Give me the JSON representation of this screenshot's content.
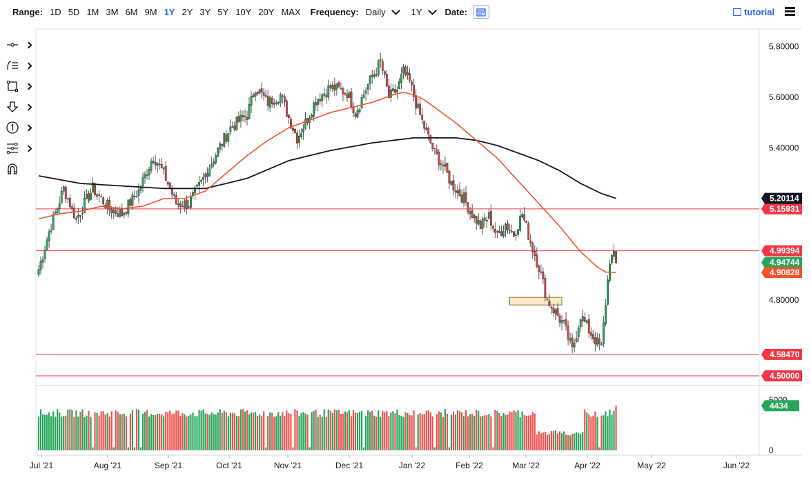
{
  "toolbar": {
    "range_label": "Range:",
    "ranges": [
      "1D",
      "5D",
      "1M",
      "3M",
      "6M",
      "9M",
      "1Y",
      "2Y",
      "3Y",
      "5Y",
      "10Y",
      "20Y",
      "MAX"
    ],
    "active_range": "1Y",
    "frequency_label": "Frequency:",
    "frequency_value": "Daily",
    "period_value": "1Y",
    "date_label": "Date:",
    "tutorial_label": "tutorial"
  },
  "tools": [
    "crosshair-icon",
    "trend-lines-icon",
    "shapes-icon",
    "arrow-down-icon",
    "annotation-icon",
    "measure-icon",
    "magnet-icon"
  ],
  "chart_data": {
    "type": "candlestick",
    "x_ticks": [
      "Jul '21",
      "Aug '21",
      "Sep '21",
      "Oct '21",
      "Nov '21",
      "Dec '21",
      "Jan '22",
      "Feb '22",
      "Mar '22",
      "Apr '22",
      "May '22",
      "Jun '22"
    ],
    "y_ticks": [
      "5.80000",
      "5.60000",
      "5.40000",
      "4.80000"
    ],
    "ylim": [
      4.47,
      5.87
    ],
    "horizontal_lines": [
      {
        "value": 5.15931,
        "label": "5.15931",
        "color": "#f23645"
      },
      {
        "value": 4.99394,
        "label": "4.99394",
        "color": "#f23645"
      },
      {
        "value": 4.5847,
        "label": "4.58470",
        "color": "#f23645"
      },
      {
        "value": 4.5,
        "label": "4.50000",
        "color": "#f23645"
      }
    ],
    "price_labels": [
      {
        "value": 5.20114,
        "label": "5.20114",
        "color": "#131722"
      },
      {
        "value": 4.94744,
        "label": "4.94744",
        "color": "#26a65b"
      },
      {
        "value": 4.90828,
        "label": "4.90828",
        "color": "#f0532d"
      }
    ],
    "close_anchors": [
      [
        0,
        4.92
      ],
      [
        5,
        5.07
      ],
      [
        12,
        5.24
      ],
      [
        18,
        5.12
      ],
      [
        26,
        5.24
      ],
      [
        34,
        5.16
      ],
      [
        40,
        5.14
      ],
      [
        48,
        5.23
      ],
      [
        55,
        5.37
      ],
      [
        60,
        5.3
      ],
      [
        66,
        5.18
      ],
      [
        72,
        5.18
      ],
      [
        78,
        5.26
      ],
      [
        84,
        5.36
      ],
      [
        92,
        5.48
      ],
      [
        100,
        5.53
      ],
      [
        104,
        5.64
      ],
      [
        110,
        5.58
      ],
      [
        116,
        5.61
      ],
      [
        120,
        5.52
      ],
      [
        124,
        5.44
      ],
      [
        128,
        5.5
      ],
      [
        133,
        5.59
      ],
      [
        140,
        5.64
      ],
      [
        148,
        5.62
      ],
      [
        152,
        5.54
      ],
      [
        158,
        5.65
      ],
      [
        164,
        5.74
      ],
      [
        168,
        5.6
      ],
      [
        172,
        5.63
      ],
      [
        175,
        5.7
      ],
      [
        178,
        5.66
      ],
      [
        182,
        5.55
      ],
      [
        186,
        5.46
      ],
      [
        190,
        5.38
      ],
      [
        194,
        5.33
      ],
      [
        198,
        5.26
      ],
      [
        204,
        5.2
      ],
      [
        208,
        5.14
      ],
      [
        212,
        5.09
      ],
      [
        216,
        5.13
      ],
      [
        220,
        5.05
      ],
      [
        224,
        5.1
      ],
      [
        228,
        5.06
      ],
      [
        232,
        5.14
      ],
      [
        236,
        5.03
      ],
      [
        240,
        4.93
      ],
      [
        244,
        4.8
      ],
      [
        248,
        4.75
      ],
      [
        252,
        4.7
      ],
      [
        256,
        4.6
      ],
      [
        260,
        4.74
      ],
      [
        264,
        4.68
      ],
      [
        268,
        4.63
      ],
      [
        270,
        4.61
      ],
      [
        272,
        4.79
      ],
      [
        274,
        4.96
      ],
      [
        276,
        4.97
      ],
      [
        277,
        4.947
      ]
    ],
    "ema_anchors": [
      [
        0,
        5.12
      ],
      [
        10,
        5.14
      ],
      [
        20,
        5.15
      ],
      [
        30,
        5.17
      ],
      [
        40,
        5.16
      ],
      [
        50,
        5.17
      ],
      [
        60,
        5.2
      ],
      [
        70,
        5.2
      ],
      [
        80,
        5.23
      ],
      [
        90,
        5.3
      ],
      [
        100,
        5.37
      ],
      [
        110,
        5.43
      ],
      [
        120,
        5.48
      ],
      [
        130,
        5.51
      ],
      [
        140,
        5.54
      ],
      [
        150,
        5.56
      ],
      [
        160,
        5.58
      ],
      [
        170,
        5.61
      ],
      [
        175,
        5.62
      ],
      [
        180,
        5.61
      ],
      [
        185,
        5.59
      ],
      [
        190,
        5.56
      ],
      [
        200,
        5.5
      ],
      [
        210,
        5.43
      ],
      [
        220,
        5.36
      ],
      [
        230,
        5.27
      ],
      [
        240,
        5.18
      ],
      [
        250,
        5.09
      ],
      [
        260,
        4.99
      ],
      [
        268,
        4.93
      ],
      [
        272,
        4.91
      ],
      [
        277,
        4.90828
      ]
    ],
    "sma_anchors": [
      [
        0,
        5.29
      ],
      [
        20,
        5.26
      ],
      [
        40,
        5.25
      ],
      [
        60,
        5.24
      ],
      [
        80,
        5.24
      ],
      [
        100,
        5.28
      ],
      [
        120,
        5.35
      ],
      [
        140,
        5.39
      ],
      [
        160,
        5.42
      ],
      [
        180,
        5.44
      ],
      [
        190,
        5.44
      ],
      [
        200,
        5.44
      ],
      [
        210,
        5.43
      ],
      [
        220,
        5.41
      ],
      [
        230,
        5.38
      ],
      [
        240,
        5.35
      ],
      [
        250,
        5.31
      ],
      [
        260,
        5.26
      ],
      [
        270,
        5.22
      ],
      [
        277,
        5.20114
      ]
    ],
    "box": {
      "start_idx": 226,
      "end_idx": 251,
      "top": 4.81,
      "bottom": 4.78
    },
    "volume": {
      "axis_ticks": [
        "5000",
        "0"
      ],
      "ylim": [
        0,
        5000
      ],
      "last_label": "4434",
      "last_value": 4434
    }
  }
}
